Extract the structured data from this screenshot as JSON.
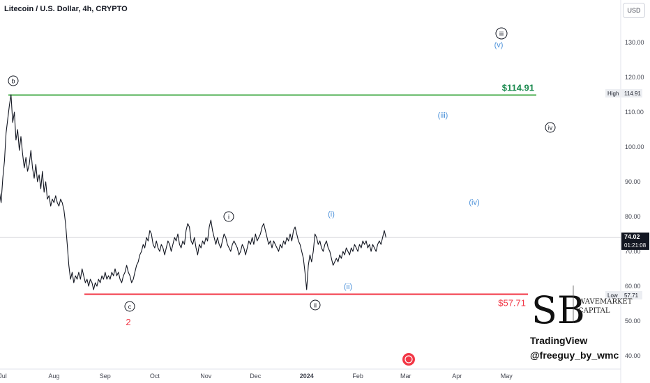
{
  "header": {
    "title": "Litecoin / U.S. Dollar, 4h, CRYPTO",
    "currency_button": "USD"
  },
  "chart_data": {
    "type": "line",
    "title": "Litecoin / U.S. Dollar, 4h, CRYPTO",
    "ylim": [
      38,
      140
    ],
    "y_ticks": [
      40,
      50,
      60,
      70,
      80,
      90,
      100,
      110,
      120,
      130
    ],
    "y_tick_labels": [
      "40.00",
      "50.00",
      "60.00",
      "70.00",
      "80.00",
      "90.00",
      "100.00",
      "110.00",
      "120.00",
      "130.00"
    ],
    "x_ticks": [
      {
        "label": "Jul",
        "day": 0
      },
      {
        "label": "Aug",
        "day": 31
      },
      {
        "label": "Sep",
        "day": 62
      },
      {
        "label": "Oct",
        "day": 92
      },
      {
        "label": "Nov",
        "day": 123
      },
      {
        "label": "Dec",
        "day": 153
      },
      {
        "label": "2024",
        "day": 184
      },
      {
        "label": "Feb",
        "day": 215
      },
      {
        "label": "Mar",
        "day": 244
      },
      {
        "label": "Apr",
        "day": 275
      },
      {
        "label": "May",
        "day": 305
      }
    ],
    "series": [
      {
        "values_by_day": [
          [
            -2,
            87
          ],
          [
            -1,
            84
          ],
          [
            0,
            91
          ],
          [
            1,
            96
          ],
          [
            2,
            104
          ],
          [
            3,
            108
          ],
          [
            4,
            112
          ],
          [
            5,
            115
          ],
          [
            6,
            107
          ],
          [
            7,
            110
          ],
          [
            8,
            102
          ],
          [
            9,
            105
          ],
          [
            10,
            99
          ],
          [
            11,
            103
          ],
          [
            12,
            98
          ],
          [
            13,
            94
          ],
          [
            14,
            97
          ],
          [
            15,
            93
          ],
          [
            16,
            95
          ],
          [
            17,
            99
          ],
          [
            18,
            94
          ],
          [
            19,
            91
          ],
          [
            20,
            95
          ],
          [
            21,
            90
          ],
          [
            22,
            92
          ],
          [
            23,
            88
          ],
          [
            24,
            93
          ],
          [
            25,
            87
          ],
          [
            26,
            90
          ],
          [
            27,
            85
          ],
          [
            28,
            86
          ],
          [
            29,
            83
          ],
          [
            30,
            85
          ],
          [
            31,
            84
          ],
          [
            32,
            86
          ],
          [
            33,
            84
          ],
          [
            34,
            83
          ],
          [
            35,
            85
          ],
          [
            36,
            84
          ],
          [
            37,
            82
          ],
          [
            38,
            78
          ],
          [
            39,
            72
          ],
          [
            40,
            66
          ],
          [
            41,
            62
          ],
          [
            42,
            64
          ],
          [
            43,
            61
          ],
          [
            44,
            63
          ],
          [
            45,
            62
          ],
          [
            46,
            64
          ],
          [
            47,
            62
          ],
          [
            48,
            65
          ],
          [
            49,
            63
          ],
          [
            50,
            61
          ],
          [
            51,
            62
          ],
          [
            52,
            60
          ],
          [
            53,
            62
          ],
          [
            54,
            61
          ],
          [
            55,
            59
          ],
          [
            56,
            61
          ],
          [
            57,
            60
          ],
          [
            58,
            62
          ],
          [
            59,
            61
          ],
          [
            60,
            63
          ],
          [
            61,
            62
          ],
          [
            62,
            64
          ],
          [
            63,
            62
          ],
          [
            64,
            63
          ],
          [
            65,
            62
          ],
          [
            66,
            64
          ],
          [
            67,
            63
          ],
          [
            68,
            65
          ],
          [
            69,
            63
          ],
          [
            70,
            64
          ],
          [
            71,
            62
          ],
          [
            72,
            61
          ],
          [
            73,
            63
          ],
          [
            74,
            64
          ],
          [
            75,
            66
          ],
          [
            76,
            64
          ],
          [
            77,
            63
          ],
          [
            78,
            61
          ],
          [
            79,
            62
          ],
          [
            80,
            64
          ],
          [
            81,
            66
          ],
          [
            82,
            67
          ],
          [
            83,
            69
          ],
          [
            84,
            70
          ],
          [
            85,
            72
          ],
          [
            86,
            71
          ],
          [
            87,
            74
          ],
          [
            88,
            73
          ],
          [
            89,
            76
          ],
          [
            90,
            75
          ],
          [
            91,
            72
          ],
          [
            92,
            71
          ],
          [
            93,
            73
          ],
          [
            94,
            71
          ],
          [
            95,
            70
          ],
          [
            96,
            72
          ],
          [
            97,
            71
          ],
          [
            98,
            69
          ],
          [
            99,
            71
          ],
          [
            100,
            73
          ],
          [
            101,
            72
          ],
          [
            102,
            70
          ],
          [
            103,
            72
          ],
          [
            104,
            74
          ],
          [
            105,
            73
          ],
          [
            106,
            75
          ],
          [
            107,
            72
          ],
          [
            108,
            71
          ],
          [
            109,
            73
          ],
          [
            110,
            72
          ],
          [
            111,
            76
          ],
          [
            112,
            78
          ],
          [
            113,
            77
          ],
          [
            114,
            73
          ],
          [
            115,
            72
          ],
          [
            116,
            74
          ],
          [
            117,
            71
          ],
          [
            118,
            69
          ],
          [
            119,
            72
          ],
          [
            120,
            71
          ],
          [
            121,
            73
          ],
          [
            122,
            72
          ],
          [
            123,
            74
          ],
          [
            124,
            73
          ],
          [
            125,
            77
          ],
          [
            126,
            79
          ],
          [
            127,
            76
          ],
          [
            128,
            74
          ],
          [
            129,
            72
          ],
          [
            130,
            74
          ],
          [
            131,
            72
          ],
          [
            132,
            71
          ],
          [
            133,
            73
          ],
          [
            134,
            75
          ],
          [
            135,
            74
          ],
          [
            136,
            72
          ],
          [
            137,
            71
          ],
          [
            138,
            70
          ],
          [
            139,
            72
          ],
          [
            140,
            73
          ],
          [
            141,
            72
          ],
          [
            142,
            71
          ],
          [
            143,
            69
          ],
          [
            144,
            70
          ],
          [
            145,
            72
          ],
          [
            146,
            71
          ],
          [
            147,
            69
          ],
          [
            148,
            71
          ],
          [
            149,
            73
          ],
          [
            150,
            72
          ],
          [
            151,
            74
          ],
          [
            152,
            72
          ],
          [
            153,
            75
          ],
          [
            154,
            73
          ],
          [
            155,
            74
          ],
          [
            156,
            75
          ],
          [
            157,
            77
          ],
          [
            158,
            78
          ],
          [
            159,
            76
          ],
          [
            160,
            74
          ],
          [
            161,
            72
          ],
          [
            162,
            73
          ],
          [
            163,
            71
          ],
          [
            164,
            73
          ],
          [
            165,
            72
          ],
          [
            166,
            71
          ],
          [
            167,
            70
          ],
          [
            168,
            72
          ],
          [
            169,
            71
          ],
          [
            170,
            73
          ],
          [
            171,
            72
          ],
          [
            172,
            74
          ],
          [
            173,
            73
          ],
          [
            174,
            75
          ],
          [
            175,
            73
          ],
          [
            176,
            76
          ],
          [
            177,
            77
          ],
          [
            178,
            75
          ],
          [
            179,
            73
          ],
          [
            180,
            72
          ],
          [
            181,
            70
          ],
          [
            182,
            68
          ],
          [
            183,
            64
          ],
          [
            184,
            59
          ],
          [
            185,
            66
          ],
          [
            186,
            69
          ],
          [
            187,
            67
          ],
          [
            188,
            70
          ],
          [
            189,
            75
          ],
          [
            190,
            74
          ],
          [
            191,
            72
          ],
          [
            192,
            73
          ],
          [
            193,
            71
          ],
          [
            194,
            70
          ],
          [
            195,
            72
          ],
          [
            196,
            73
          ],
          [
            197,
            71
          ],
          [
            198,
            70
          ],
          [
            199,
            68
          ],
          [
            200,
            66
          ],
          [
            201,
            67
          ],
          [
            202,
            68
          ],
          [
            203,
            67
          ],
          [
            204,
            69
          ],
          [
            205,
            68
          ],
          [
            206,
            70
          ],
          [
            207,
            69
          ],
          [
            208,
            71
          ],
          [
            209,
            70
          ],
          [
            210,
            69
          ],
          [
            211,
            71
          ],
          [
            212,
            70
          ],
          [
            213,
            72
          ],
          [
            214,
            71
          ],
          [
            215,
            70
          ],
          [
            216,
            72
          ],
          [
            217,
            71
          ],
          [
            218,
            73
          ],
          [
            219,
            72
          ],
          [
            220,
            73
          ],
          [
            221,
            71
          ],
          [
            222,
            72
          ],
          [
            223,
            70
          ],
          [
            224,
            72
          ],
          [
            225,
            71
          ],
          [
            226,
            70
          ],
          [
            227,
            72
          ],
          [
            228,
            73
          ],
          [
            229,
            72
          ],
          [
            230,
            74
          ],
          [
            231,
            76
          ],
          [
            232,
            74
          ]
        ]
      }
    ]
  },
  "price_labels": {
    "high_tag": "High",
    "high_value": "114.91",
    "low_tag": "Low",
    "low_value": "57.71",
    "current_price": "74.02",
    "countdown": "01:21:08"
  },
  "levels": {
    "high": {
      "value": 114.91,
      "label": "$114.91",
      "color": "#4caf50",
      "label_color": "#1b8a4f"
    },
    "low": {
      "value": 57.71,
      "label": "$57.71",
      "color": "#f23645",
      "label_color": "#f23645"
    }
  },
  "wave_labels": [
    {
      "text": "b",
      "style": "circled"
    },
    {
      "text": "c",
      "style": "circled"
    },
    {
      "text": "2",
      "style": "red"
    },
    {
      "text": "i",
      "style": "circled"
    },
    {
      "text": "ii",
      "style": "circled"
    },
    {
      "text": "iii",
      "style": "circled"
    },
    {
      "text": "iv",
      "style": "circled"
    },
    {
      "text": "(i)",
      "style": "blue"
    },
    {
      "text": "(ii)",
      "style": "blue"
    },
    {
      "text": "(iii)",
      "style": "blue"
    },
    {
      "text": "(iv)",
      "style": "blue"
    },
    {
      "text": "(v)",
      "style": "blue"
    }
  ],
  "watermark": {
    "brand_line1": "WAVEMARKET",
    "brand_line2": "CAPITAL",
    "platform": "TradingView",
    "author": "@freeguy_by_wmc"
  },
  "colors": {
    "price_line": "#131722",
    "wave_blue": "#4a90d9",
    "axis_text": "#434651"
  }
}
